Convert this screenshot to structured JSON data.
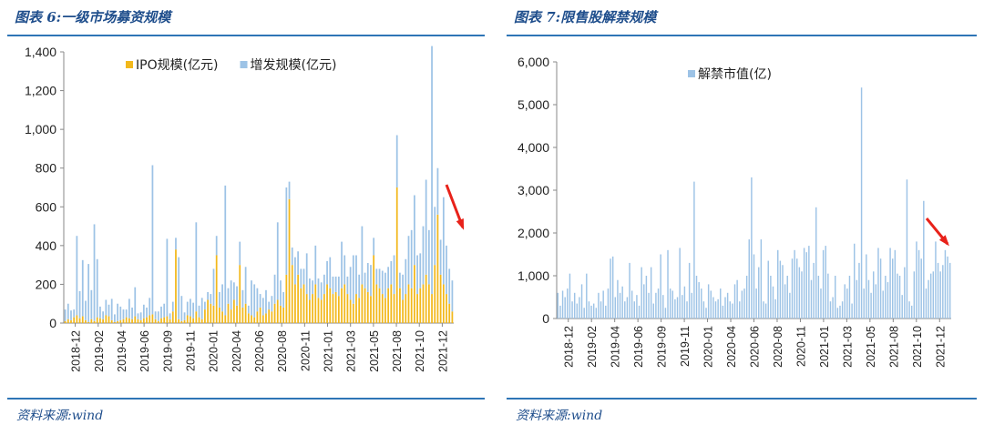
{
  "left_panel": {
    "figure_title": "图表 6:一级市场募资规模",
    "source": "资料来源:wind",
    "chart_data": {
      "type": "bar",
      "stacked": true,
      "ylim": [
        0,
        1400
      ],
      "yticks": [
        "0",
        "200",
        "400",
        "600",
        "800",
        "1,000",
        "1,200",
        "1,400"
      ],
      "ytick_values": [
        0,
        200,
        400,
        600,
        800,
        1000,
        1200,
        1400
      ],
      "legend_position": "top",
      "grid": false,
      "x_tick_labels": [
        "2018-12",
        "2019-02",
        "2019-04",
        "2019-06",
        "2019-09",
        "2019-11",
        "2020-01",
        "2020-04",
        "2020-06",
        "2020-08",
        "2020-11",
        "2021-01",
        "2021-03",
        "2021-05",
        "2021-08",
        "2021-10",
        "2021-12"
      ],
      "series": [
        {
          "name": "IPO规模(亿元)",
          "color": "#f2b81b",
          "values": [
            10,
            20,
            15,
            30,
            40,
            25,
            35,
            15,
            5,
            20,
            10,
            30,
            25,
            20,
            40,
            35,
            15,
            5,
            10,
            15,
            20,
            30,
            25,
            20,
            35,
            20,
            15,
            25,
            30,
            40,
            45,
            20,
            10,
            25,
            30,
            35,
            20,
            60,
            380,
            20,
            10,
            15,
            40,
            35,
            25,
            60,
            30,
            20,
            70,
            120,
            100,
            90,
            350,
            80,
            60,
            40,
            100,
            70,
            120,
            90,
            300,
            80,
            100,
            50,
            40,
            30,
            60,
            80,
            40,
            50,
            70,
            60,
            100,
            120,
            90,
            80,
            250,
            640,
            300,
            200,
            250,
            180,
            200,
            150,
            120,
            150,
            200,
            130,
            120,
            150,
            200,
            180,
            150,
            160,
            140,
            180,
            200,
            150,
            120,
            100,
            150,
            130,
            200,
            180,
            160,
            140,
            350,
            200,
            180,
            150,
            130,
            180,
            200,
            150,
            700,
            180,
            120,
            150,
            200,
            180,
            300,
            150,
            180,
            200,
            250,
            200,
            150,
            300,
            560,
            250,
            200,
            150,
            100,
            60
          ]
        },
        {
          "name": "增发规模(亿元)",
          "color": "#9dc3e6",
          "values": [
            60,
            80,
            50,
            40,
            410,
            140,
            290,
            100,
            300,
            150,
            500,
            300,
            60,
            40,
            80,
            60,
            110,
            40,
            90,
            70,
            50,
            40,
            100,
            60,
            150,
            30,
            40,
            70,
            50,
            90,
            770,
            40,
            50,
            60,
            70,
            400,
            30,
            50,
            60,
            320,
            130,
            40,
            70,
            90,
            80,
            460,
            60,
            110,
            40,
            40,
            50,
            190,
            100,
            80,
            140,
            670,
            80,
            150,
            90,
            100,
            120,
            90,
            190,
            40,
            180,
            170,
            120,
            70,
            90,
            120,
            40,
            80,
            150,
            400,
            130,
            80,
            450,
            90,
            90,
            140,
            120,
            100,
            80,
            210,
            110,
            70,
            200,
            100,
            90,
            100,
            120,
            160,
            90,
            80,
            100,
            240,
            150,
            90,
            170,
            250,
            200,
            120,
            300,
            80,
            150,
            160,
            90,
            80,
            100,
            120,
            130,
            110,
            120,
            200,
            270,
            80,
            130,
            180,
            250,
            300,
            360,
            200,
            180,
            300,
            490,
            280,
            1280,
            300,
            240,
            180,
            450,
            250,
            180,
            160,
            150,
            100,
            80,
            60
          ]
        }
      ]
    }
  },
  "right_panel": {
    "figure_title": "图表 7:限售股解禁规模",
    "source": "资料来源:wind",
    "chart_data": {
      "type": "bar",
      "ylim": [
        0,
        6000
      ],
      "yticks": [
        "0",
        "1,000",
        "2,000",
        "3,000",
        "4,000",
        "5,000",
        "6,000"
      ],
      "ytick_values": [
        0,
        1000,
        2000,
        3000,
        4000,
        5000,
        6000
      ],
      "legend_position": "top",
      "grid": false,
      "x_tick_labels": [
        "2018-12",
        "2019-02",
        "2019-04",
        "2019-06",
        "2019-09",
        "2019-11",
        "2020-01",
        "2020-04",
        "2020-06",
        "2020-08",
        "2020-11",
        "2021-01",
        "2021-03",
        "2021-05",
        "2021-08",
        "2021-10",
        "2021-12"
      ],
      "series": [
        {
          "name": "解禁市值(亿)",
          "color": "#9dc3e6",
          "values": [
            600,
            300,
            650,
            500,
            700,
            1050,
            400,
            600,
            350,
            500,
            800,
            250,
            1050,
            400,
            300,
            350,
            250,
            600,
            400,
            650,
            300,
            700,
            1400,
            1450,
            500,
            900,
            600,
            750,
            400,
            500,
            1300,
            650,
            400,
            550,
            300,
            1200,
            800,
            1000,
            600,
            1200,
            350,
            600,
            700,
            1500,
            550,
            250,
            1600,
            700,
            650,
            450,
            500,
            1650,
            550,
            750,
            400,
            1300,
            600,
            3200,
            1000,
            850,
            700,
            400,
            250,
            800,
            650,
            500,
            400,
            450,
            700,
            300,
            500,
            600,
            400,
            350,
            800,
            900,
            400,
            650,
            700,
            1000,
            1850,
            3300,
            1500,
            700,
            1200,
            1850,
            400,
            350,
            1350,
            1000,
            750,
            450,
            1600,
            1350,
            1250,
            800,
            1000,
            600,
            1400,
            1600,
            1400,
            1200,
            1100,
            1650,
            1550,
            1700,
            900,
            1300,
            2600,
            1000,
            700,
            1600,
            1700,
            1050,
            400,
            500,
            1000,
            250,
            300,
            400,
            800,
            700,
            1000,
            350,
            1750,
            900,
            1300,
            5400,
            700,
            1500,
            900,
            600,
            1100,
            800,
            1650,
            1400,
            650,
            1000,
            850,
            1650,
            1400,
            1600,
            1050,
            1000,
            550,
            1200,
            3250,
            400,
            300,
            1100,
            1800,
            1600,
            1400,
            2750,
            700,
            900,
            1050,
            1100,
            1800,
            1300,
            1100,
            1250,
            1600,
            1450,
            1300
          ]
        }
      ]
    }
  }
}
